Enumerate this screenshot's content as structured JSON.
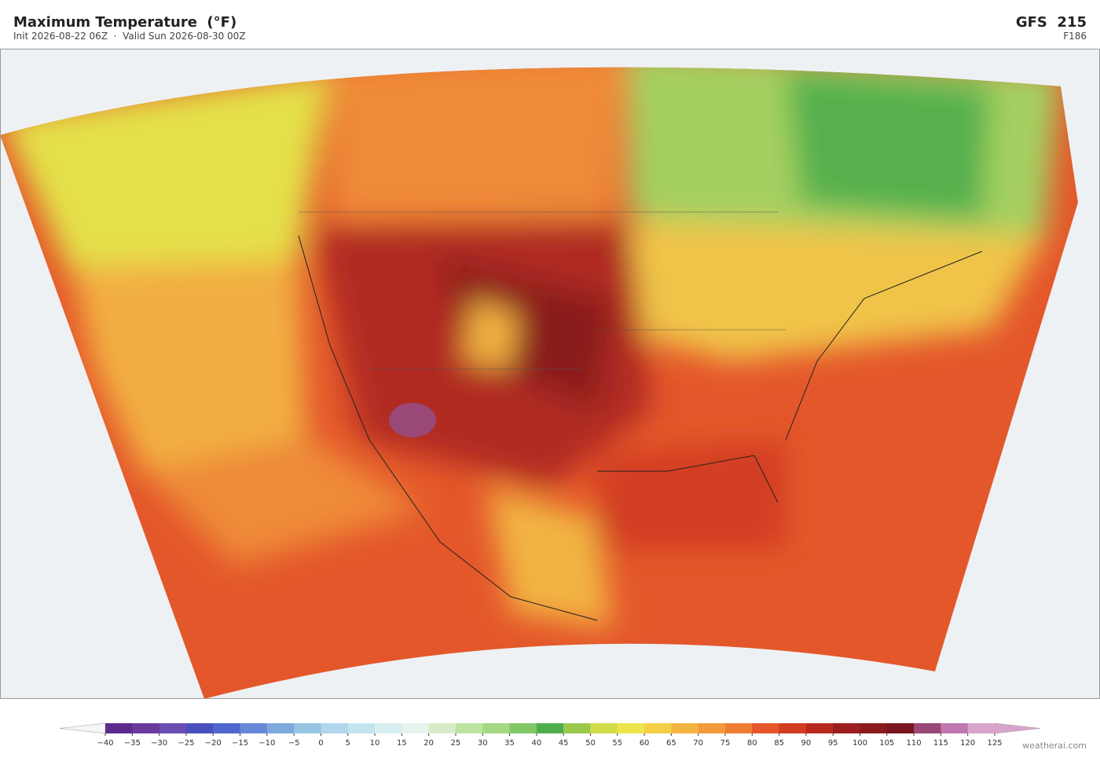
{
  "header": {
    "title": "Maximum Temperature  (°F)",
    "subtitle": "Init 2026-08-22 06Z  ·  Valid Sun 2026-08-30 00Z",
    "model": "GFS  215",
    "forecast_hour": "F186"
  },
  "colorbar": {
    "ticks": [
      {
        "value": -40,
        "label": "−40"
      },
      {
        "value": -35,
        "label": "−35"
      },
      {
        "value": -30,
        "label": "−30"
      },
      {
        "value": -25,
        "label": "−25"
      },
      {
        "value": -20,
        "label": "−20"
      },
      {
        "value": -15,
        "label": "−15"
      },
      {
        "value": -10,
        "label": "−10"
      },
      {
        "value": -5,
        "label": "−5"
      },
      0,
      5,
      10,
      15,
      20,
      25,
      30,
      35,
      40,
      45,
      50,
      55,
      60,
      65,
      70,
      75,
      80,
      85,
      90,
      95,
      100,
      105,
      110,
      115,
      120,
      125
    ],
    "colors": [
      "#5b2a8c",
      "#6a3a9c",
      "#6c4cb0",
      "#4a4fc0",
      "#4f66cc",
      "#6688d6",
      "#7fa8dc",
      "#98c4e4",
      "#b0d6ec",
      "#c4e4f0",
      "#d8eff2",
      "#e6f4ee",
      "#d6ecc8",
      "#bde3a0",
      "#a4d882",
      "#80c766",
      "#4fae4c",
      "#9cc94c",
      "#d2dc4a",
      "#ede54c",
      "#f3cf48",
      "#f4b442",
      "#f29a3c",
      "#ee7e34",
      "#e4572a",
      "#d23c22",
      "#b82a20",
      "#9c1e1e",
      "#8a1a1c",
      "#7a1620",
      "#9a4878",
      "#c078b0",
      "#d8a4cc"
    ],
    "extend_colors": [
      "#f6f6f6",
      "#d8a4cc"
    ]
  },
  "credit": "weatherai.com"
}
